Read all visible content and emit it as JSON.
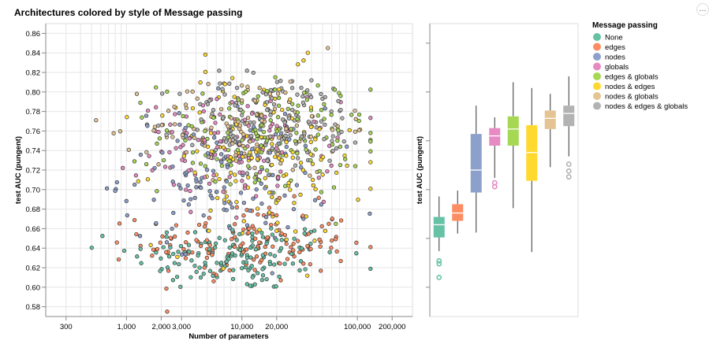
{
  "chart_data": [
    {
      "type": "scatter",
      "title": "Architectures colored by style of Message passing",
      "xlabel": "Number of parameters",
      "ylabel": "test AUC (pungent)",
      "x_scale": "log",
      "xlim": [
        200,
        300000
      ],
      "ylim": [
        0.57,
        0.87
      ],
      "x_tick_labels": [
        "300",
        "1,000",
        "2,000",
        "3,000",
        "10,000",
        "20,000",
        "100,000",
        "200,000"
      ],
      "x_tick_values": [
        300,
        1000,
        2000,
        3000,
        10000,
        20000,
        100000,
        200000
      ],
      "y_ticks": [
        0.58,
        0.6,
        0.62,
        0.64,
        0.66,
        0.68,
        0.7,
        0.72,
        0.74,
        0.76,
        0.78,
        0.8,
        0.82,
        0.84,
        0.86
      ],
      "grid": true,
      "point_counts_by_group": {
        "None": 150,
        "edges": 150,
        "nodes": 130,
        "globals": 130,
        "edges & globals": 150,
        "nodes & edges": 150,
        "nodes & globals": 130,
        "nodes & edges & globals": 140
      },
      "clusters": {
        "None": {
          "log_x_mean": 3.95,
          "log_x_sd": 0.45,
          "y_mean": 0.632,
          "y_sd": 0.018
        },
        "edges": {
          "log_x_mean": 4.05,
          "log_x_sd": 0.45,
          "y_mean": 0.645,
          "y_sd": 0.02
        },
        "nodes": {
          "log_x_mean": 3.85,
          "log_x_sd": 0.45,
          "y_mean": 0.715,
          "y_sd": 0.035
        },
        "globals": {
          "log_x_mean": 3.95,
          "log_x_sd": 0.42,
          "y_mean": 0.74,
          "y_sd": 0.025
        },
        "edges & globals": {
          "log_x_mean": 4.2,
          "log_x_sd": 0.45,
          "y_mean": 0.755,
          "y_sd": 0.03
        },
        "nodes & edges": {
          "log_x_mean": 4.15,
          "log_x_sd": 0.45,
          "y_mean": 0.73,
          "y_sd": 0.045
        },
        "nodes & globals": {
          "log_x_mean": 4.05,
          "log_x_sd": 0.42,
          "y_mean": 0.765,
          "y_sd": 0.025
        },
        "nodes & edges & globals": {
          "log_x_mean": 4.3,
          "log_x_sd": 0.42,
          "y_mean": 0.77,
          "y_sd": 0.025
        }
      }
    },
    {
      "type": "box",
      "ylabel": "test AUC (pungent)",
      "ylim": [
        0.57,
        0.87
      ],
      "series": [
        {
          "name": "None",
          "whisker_low": 0.637,
          "q1": 0.651,
          "median": 0.664,
          "q3": 0.672,
          "whisker_high": 0.693,
          "outliers": [
            0.627,
            0.624,
            0.61
          ]
        },
        {
          "name": "edges",
          "whisker_low": 0.655,
          "q1": 0.668,
          "median": 0.676,
          "q3": 0.685,
          "whisker_high": 0.699,
          "outliers": []
        },
        {
          "name": "nodes",
          "whisker_low": 0.656,
          "q1": 0.697,
          "median": 0.72,
          "q3": 0.757,
          "whisker_high": 0.786,
          "outliers": []
        },
        {
          "name": "globals",
          "whisker_low": 0.712,
          "q1": 0.745,
          "median": 0.755,
          "q3": 0.763,
          "whisker_high": 0.774,
          "outliers": [
            0.707,
            0.703
          ]
        },
        {
          "name": "edges & globals",
          "whisker_low": 0.681,
          "q1": 0.745,
          "median": 0.762,
          "q3": 0.775,
          "whisker_high": 0.81,
          "outliers": []
        },
        {
          "name": "nodes & edges",
          "whisker_low": 0.636,
          "q1": 0.709,
          "median": 0.738,
          "q3": 0.766,
          "whisker_high": 0.804,
          "outliers": []
        },
        {
          "name": "nodes & globals",
          "whisker_low": 0.723,
          "q1": 0.762,
          "median": 0.773,
          "q3": 0.781,
          "whisker_high": 0.798,
          "outliers": []
        },
        {
          "name": "nodes & edges & globals",
          "whisker_low": 0.734,
          "q1": 0.765,
          "median": 0.778,
          "q3": 0.786,
          "whisker_high": 0.816,
          "outliers": [
            0.726,
            0.719,
            0.713
          ]
        }
      ]
    }
  ],
  "legend": {
    "title": "Message passing",
    "position": "right",
    "items": [
      {
        "label": "None",
        "color": "#66c2a5"
      },
      {
        "label": "edges",
        "color": "#fc8d62"
      },
      {
        "label": "nodes",
        "color": "#8da0cb"
      },
      {
        "label": "globals",
        "color": "#e78ac3"
      },
      {
        "label": "edges & globals",
        "color": "#a6d854"
      },
      {
        "label": "nodes & edges",
        "color": "#ffd92f"
      },
      {
        "label": "nodes & globals",
        "color": "#e5c494"
      },
      {
        "label": "nodes & edges & globals",
        "color": "#b3b3b3"
      }
    ]
  },
  "colors": {
    "grid": "#e6e6e6",
    "axis": "#888888",
    "point_stroke": "#333333"
  },
  "corner_button_glyph": "…"
}
